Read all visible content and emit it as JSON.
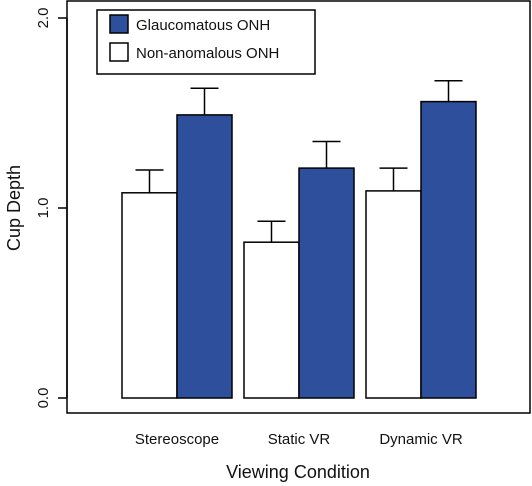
{
  "chart_data": {
    "type": "bar",
    "title": "",
    "xlabel": "Viewing Condition",
    "ylabel": "Cup Depth",
    "ylim": [
      0,
      2.0
    ],
    "yticks": [
      "0.0",
      "1.0",
      "2.0"
    ],
    "categories": [
      "Stereoscope",
      "Static VR",
      "Dynamic VR"
    ],
    "series": [
      {
        "name": "Non-anomalous ONH",
        "color": "#ffffff",
        "values": [
          1.08,
          0.82,
          1.09
        ],
        "error": [
          0.12,
          0.11,
          0.12
        ]
      },
      {
        "name": "Glaucomatous ONH",
        "color": "#2e4f9c",
        "values": [
          1.49,
          1.21,
          1.56
        ],
        "error": [
          0.14,
          0.14,
          0.11
        ]
      }
    ],
    "legend_order": [
      "Glaucomatous ONH",
      "Non-anomalous ONH"
    ],
    "legend_position": "top-left",
    "grid": false
  }
}
